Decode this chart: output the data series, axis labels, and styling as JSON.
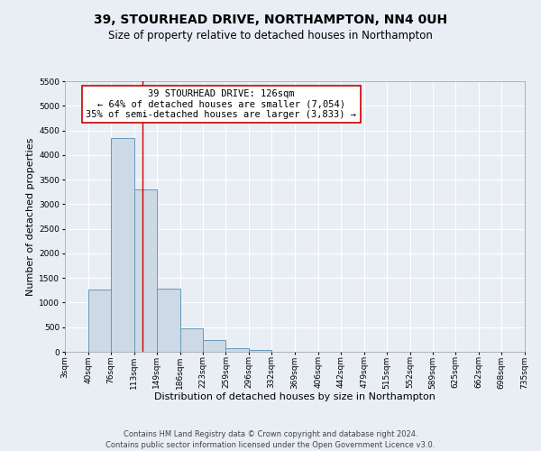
{
  "title": "39, STOURHEAD DRIVE, NORTHAMPTON, NN4 0UH",
  "subtitle": "Size of property relative to detached houses in Northampton",
  "xlabel": "Distribution of detached houses by size in Northampton",
  "ylabel": "Number of detached properties",
  "bin_edges": [
    3,
    40,
    76,
    113,
    149,
    186,
    223,
    259,
    296,
    332,
    369,
    406,
    442,
    479,
    515,
    552,
    589,
    625,
    662,
    698,
    735
  ],
  "bin_counts": [
    0,
    1270,
    4350,
    3300,
    1290,
    480,
    230,
    80,
    35,
    0,
    0,
    0,
    0,
    0,
    0,
    0,
    0,
    0,
    0,
    0
  ],
  "property_size": 126,
  "bar_facecolor": "#cdd9e5",
  "bar_edgecolor": "#6699bb",
  "vline_color": "#cc0000",
  "vline_x": 126,
  "annotation_title": "39 STOURHEAD DRIVE: 126sqm",
  "annotation_line1": "← 64% of detached houses are smaller (7,054)",
  "annotation_line2": "35% of semi-detached houses are larger (3,833) →",
  "annotation_box_facecolor": "#ffffff",
  "annotation_box_edgecolor": "#cc0000",
  "ylim": [
    0,
    5500
  ],
  "yticks": [
    0,
    500,
    1000,
    1500,
    2000,
    2500,
    3000,
    3500,
    4000,
    4500,
    5000,
    5500
  ],
  "tick_labels": [
    "3sqm",
    "40sqm",
    "76sqm",
    "113sqm",
    "149sqm",
    "186sqm",
    "223sqm",
    "259sqm",
    "296sqm",
    "332sqm",
    "369sqm",
    "406sqm",
    "442sqm",
    "479sqm",
    "515sqm",
    "552sqm",
    "589sqm",
    "625sqm",
    "662sqm",
    "698sqm",
    "735sqm"
  ],
  "footer_line1": "Contains HM Land Registry data © Crown copyright and database right 2024.",
  "footer_line2": "Contains public sector information licensed under the Open Government Licence v3.0.",
  "background_color": "#e8eef4",
  "plot_bg_color": "#e8eef4",
  "grid_color": "#ffffff",
  "title_fontsize": 10,
  "subtitle_fontsize": 8.5,
  "axis_label_fontsize": 8,
  "tick_fontsize": 6.5,
  "annotation_title_fontsize": 8,
  "annotation_body_fontsize": 7.5,
  "footer_fontsize": 6
}
